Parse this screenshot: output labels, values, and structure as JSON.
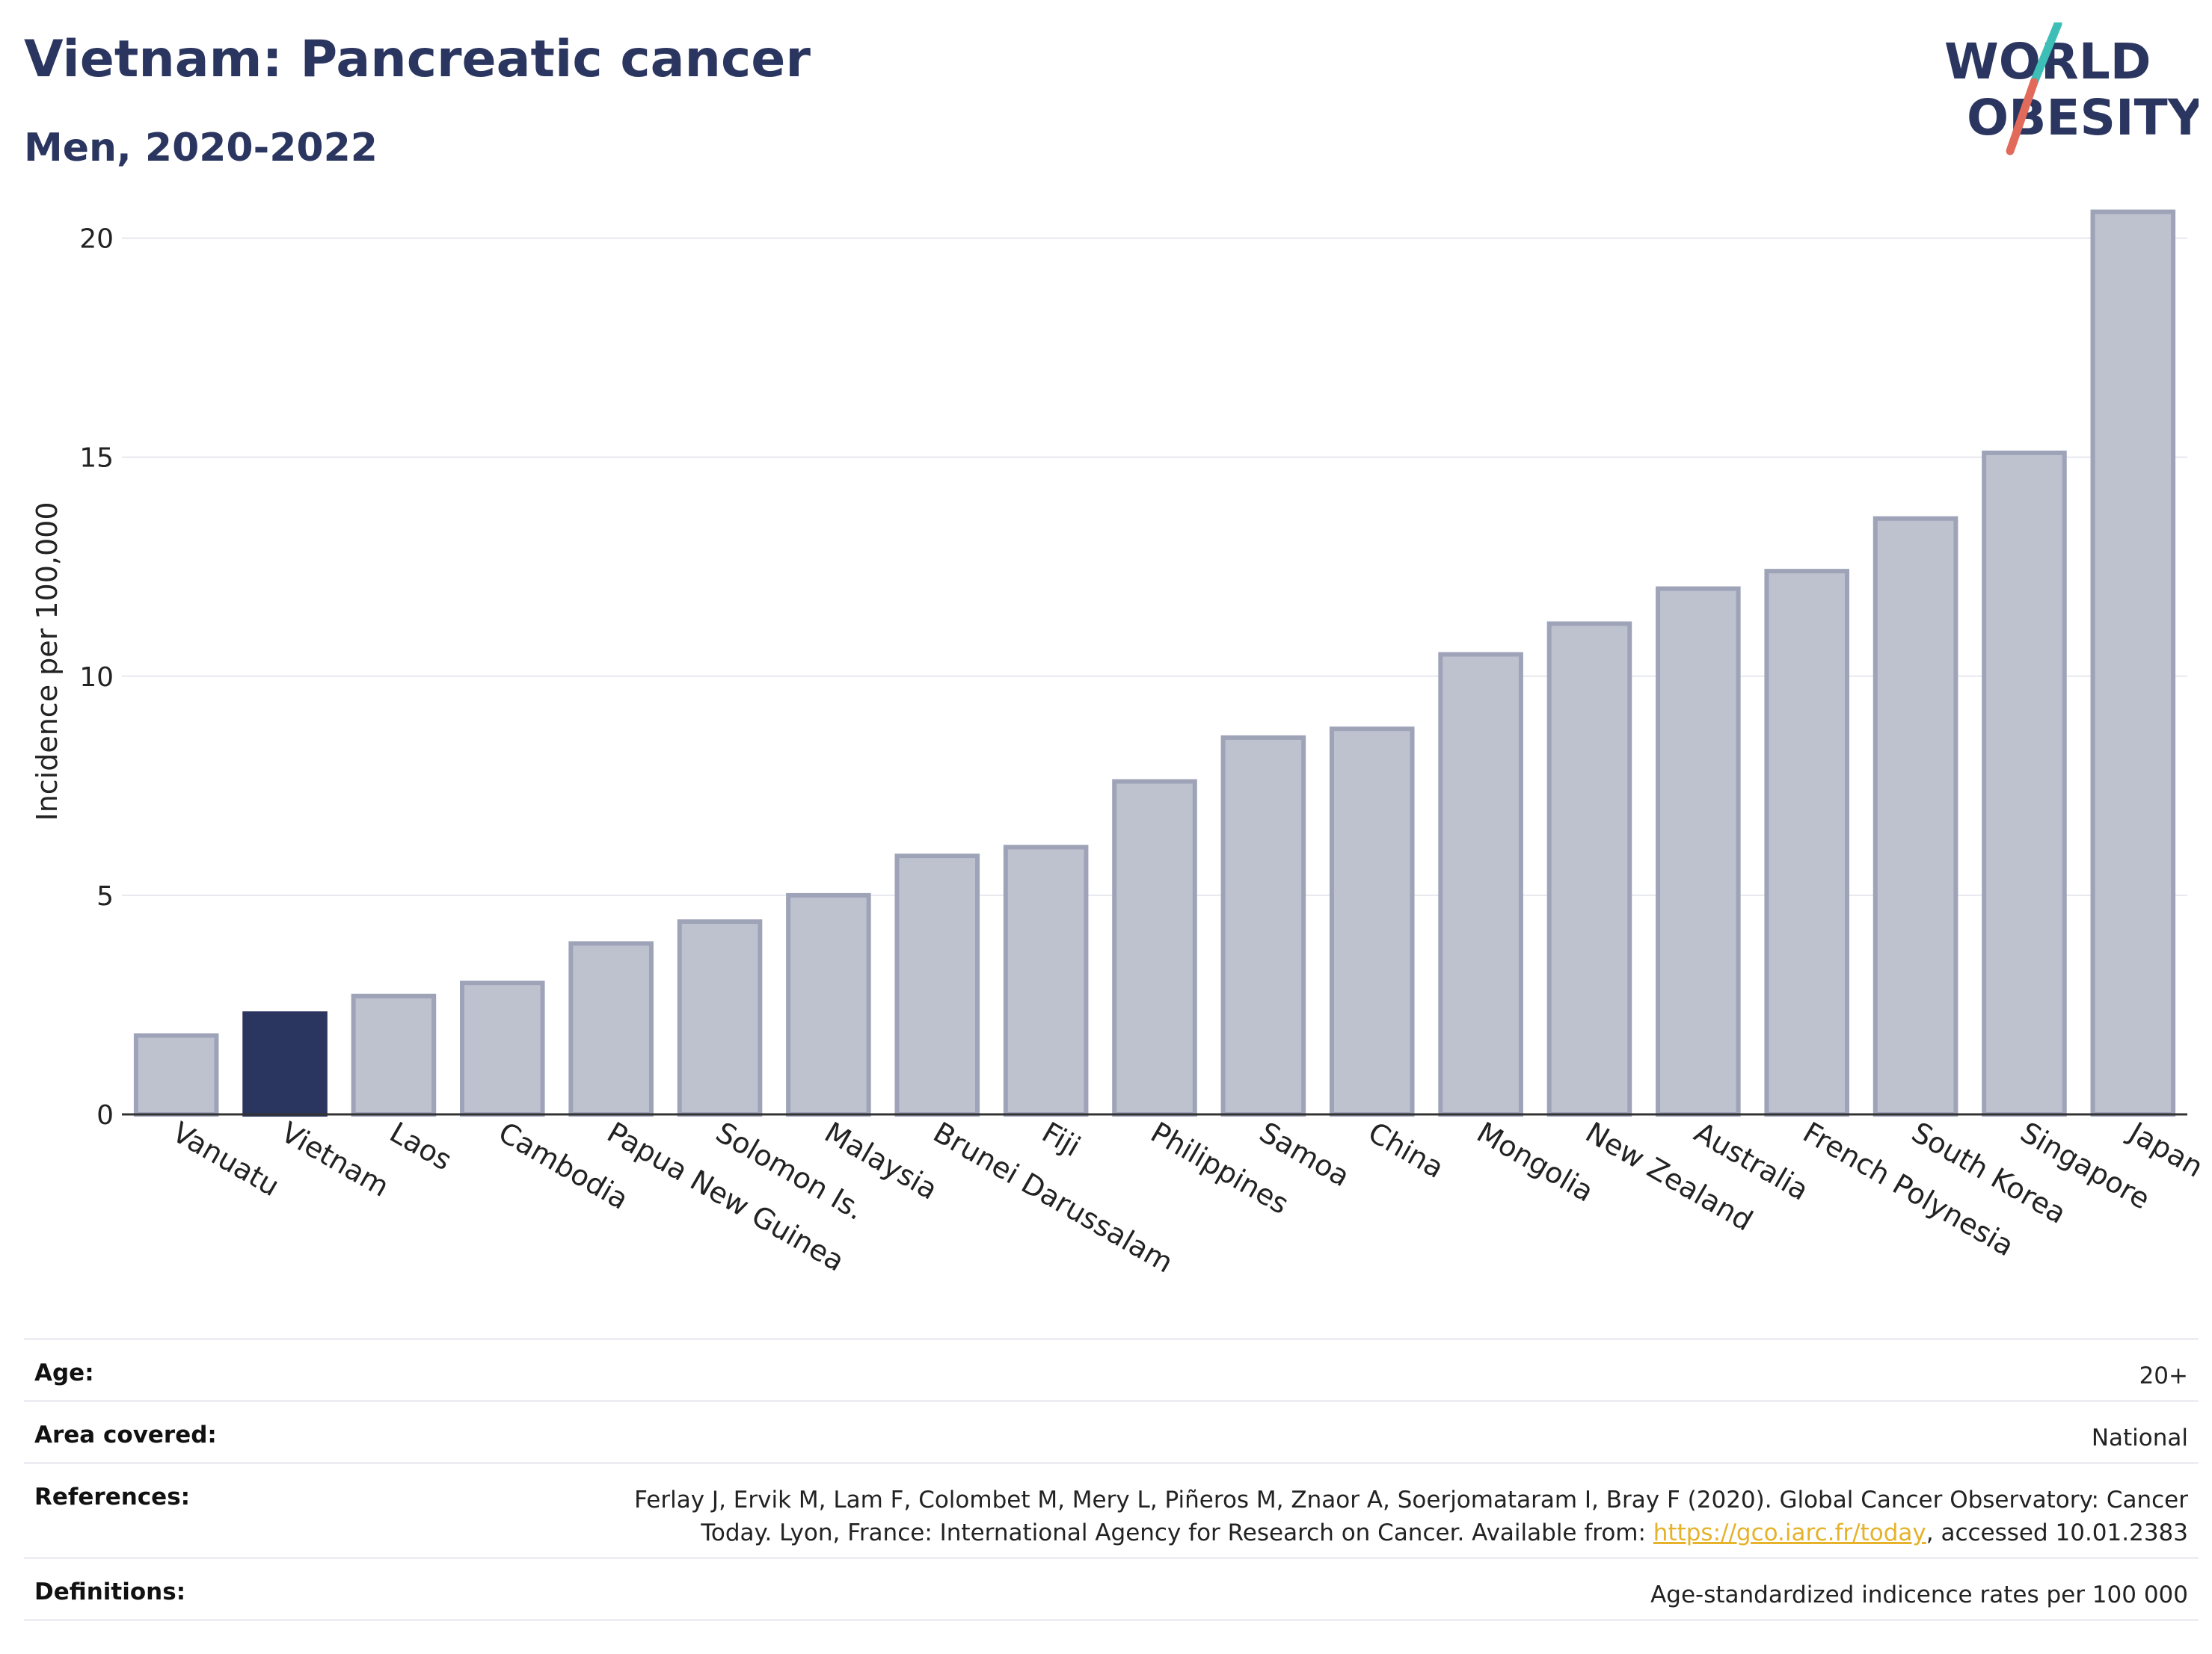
{
  "title": "Vietnam: Pancreatic cancer",
  "subtitle": "Men, 2020-2022",
  "logo": {
    "line1": "WORLD",
    "line2": "OBESITY"
  },
  "colors": {
    "highlight": "#2b3660",
    "bar": "#bec2cf",
    "bar_edge": "#9ea3b8",
    "slash_top": "#3dbfb7",
    "slash_bottom": "#e26a5a"
  },
  "chart_data": {
    "type": "bar",
    "ylabel": "Incidence per 100,000",
    "ylim": [
      0,
      21
    ],
    "yticks": [
      0,
      5,
      10,
      15,
      20
    ],
    "grid": true,
    "highlight": "Vietnam",
    "categories": [
      "Vanuatu",
      "Vietnam",
      "Laos",
      "Cambodia",
      "Papua New Guinea",
      "Solomon Is.",
      "Malaysia",
      "Brunei Darussalam",
      "Fiji",
      "Philippines",
      "Samoa",
      "China",
      "Mongolia",
      "New Zealand",
      "Australia",
      "French Polynesia",
      "South Korea",
      "Singapore",
      "Japan"
    ],
    "values": [
      1.8,
      2.3,
      2.7,
      3.0,
      3.9,
      4.4,
      5.0,
      5.9,
      6.1,
      7.6,
      8.6,
      8.8,
      10.5,
      11.2,
      12.0,
      12.4,
      13.6,
      15.1,
      20.6
    ]
  },
  "meta": {
    "age": {
      "label": "Age:",
      "value": "20+"
    },
    "area": {
      "label": "Area covered:",
      "value": "National"
    },
    "references": {
      "label": "References:",
      "line1": "Ferlay J, Ervik M, Lam F, Colombet M, Mery L, Piñeros M, Znaor A, Soerjomataram I, Bray F (2020). Global Cancer Observatory: Cancer",
      "line2_pre": "Today. Lyon, France: International Agency for Research on Cancer. Available from: ",
      "link": "https://gco.iarc.fr/today",
      "line2_post": ", accessed 10.01.2383"
    },
    "definitions": {
      "label": "Definitions:",
      "value": "Age-standardized indicence rates per 100 000"
    }
  }
}
